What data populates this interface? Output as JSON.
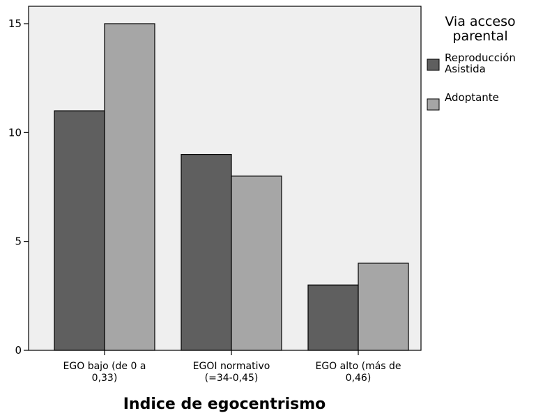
{
  "chart_data": {
    "type": "bar",
    "xlabel": "Indice de egocentrismo",
    "ylabel": "",
    "ylim": [
      0,
      16
    ],
    "yticks": [
      0,
      5,
      10,
      15
    ],
    "grid": false,
    "legend_position": "right",
    "categories": [
      [
        "EGO bajo (de 0 a",
        "0,33)"
      ],
      [
        "EGOI normativo",
        "(=34-0,45)"
      ],
      [
        "EGO alto (más de",
        "0,46)"
      ]
    ],
    "legend": {
      "title": [
        "Via acceso",
        "parental"
      ]
    },
    "series": [
      {
        "name": [
          "Reproducción",
          "Asistida"
        ],
        "values": [
          11,
          9,
          3
        ],
        "color": "#5f5f5f"
      },
      {
        "name": [
          "Adoptante"
        ],
        "values": [
          15,
          8,
          4
        ],
        "color": "#a6a6a6"
      }
    ],
    "plot_background": "#efefef"
  }
}
